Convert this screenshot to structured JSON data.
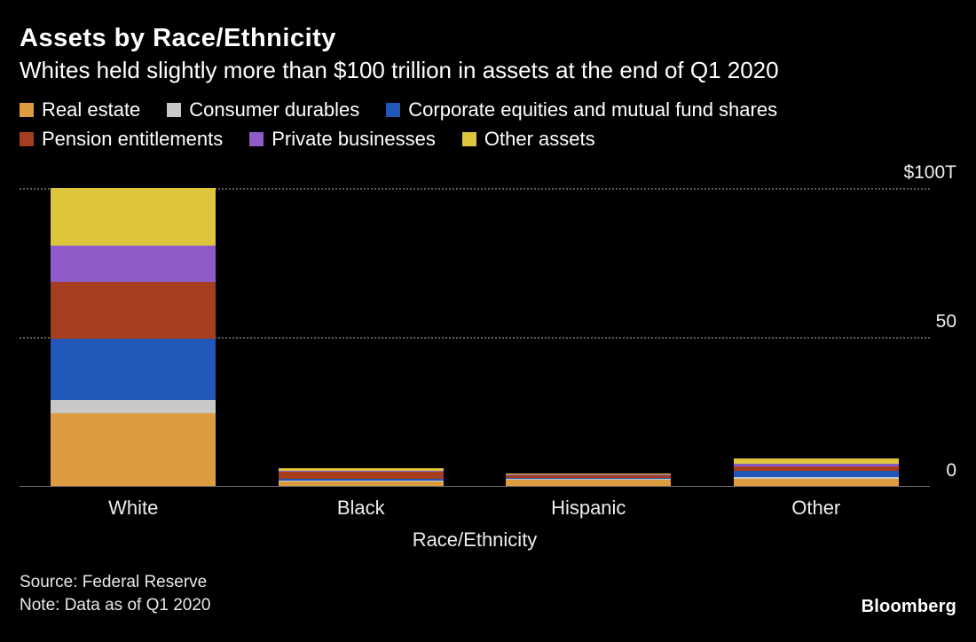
{
  "header": {
    "title": "Assets by Race/Ethnicity",
    "subtitle": "Whites held slightly more than $100 trillion in assets at the end of Q1 2020"
  },
  "colors": {
    "background": "#000000",
    "text": "#ffffff",
    "gridline": "#5c5c5c"
  },
  "chart_data": {
    "type": "bar",
    "stacked": true,
    "title": "Assets by Race/Ethnicity",
    "categories": [
      "White",
      "Black",
      "Hispanic",
      "Other"
    ],
    "series": [
      {
        "name": "Real estate",
        "color": "#DD9C3F",
        "values": [
          24.2,
          1.5,
          2.1,
          2.4
        ]
      },
      {
        "name": "Consumer durables",
        "color": "#C8C8C6",
        "values": [
          4.5,
          0.3,
          0.3,
          0.6
        ]
      },
      {
        "name": "Corporate equities and mutual fund shares",
        "color": "#2057B8",
        "values": [
          20.6,
          0.6,
          0.3,
          1.8
        ]
      },
      {
        "name": "Pension entitlements",
        "color": "#A53E1E",
        "values": [
          19.1,
          2.4,
          0.9,
          1.5
        ]
      },
      {
        "name": "Private businesses",
        "color": "#8E5BC8",
        "values": [
          12.2,
          0.3,
          0.3,
          0.9
        ]
      },
      {
        "name": "Other assets",
        "color": "#DEC53C",
        "values": [
          19.4,
          0.6,
          0.3,
          1.8
        ]
      }
    ],
    "xlabel": "Race/Ethnicity",
    "ylabel": "",
    "ylim": [
      0,
      100
    ],
    "yticks": [
      {
        "value": 100,
        "label": "$100T"
      },
      {
        "value": 50,
        "label": "50"
      },
      {
        "value": 0,
        "label": "0"
      }
    ],
    "grid": "horizontal-dotted",
    "legend_position": "top"
  },
  "footer": {
    "source": "Source: Federal Reserve",
    "note": "Note: Data as of Q1 2020",
    "brand": "Bloomberg"
  }
}
